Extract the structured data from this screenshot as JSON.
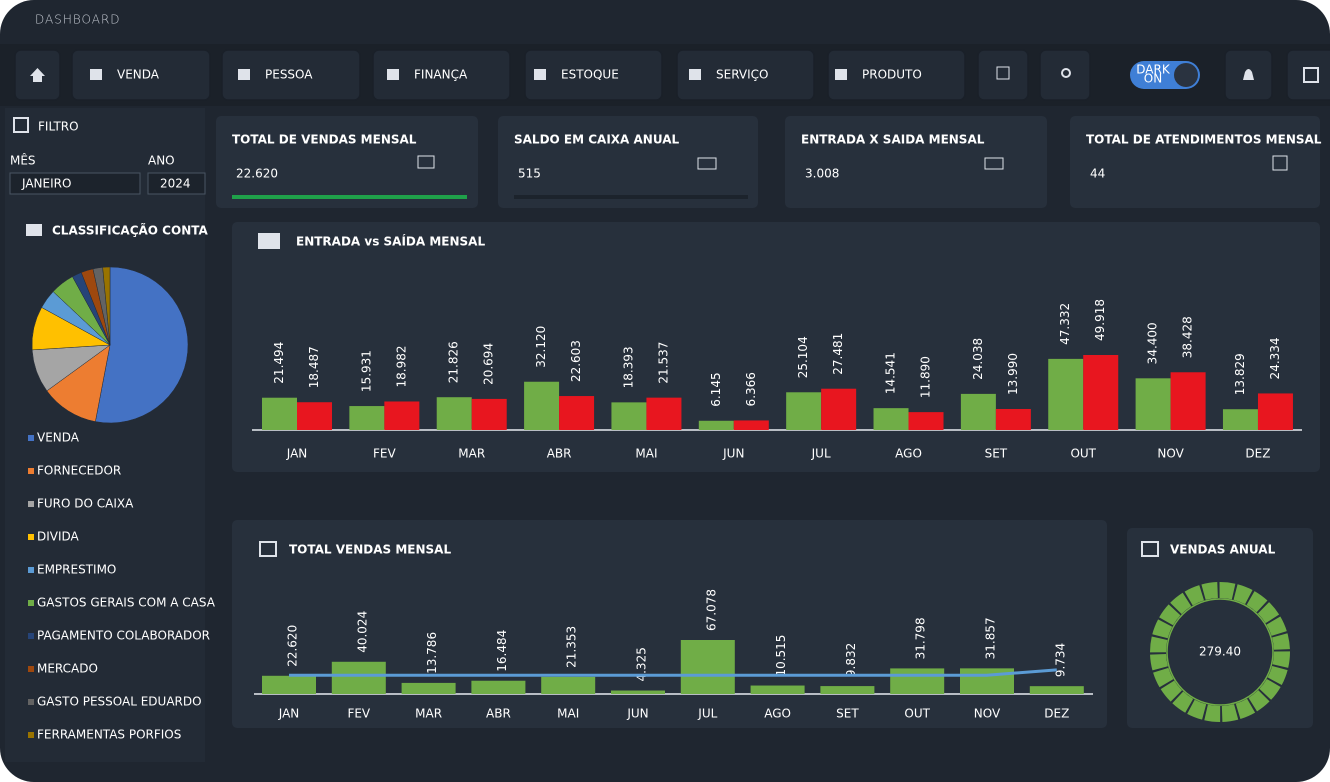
{
  "header": {
    "title": "DASHBOARD"
  },
  "nav": {
    "items": [
      "VENDA",
      "PESSOA",
      "FINANÇA",
      "ESTOQUE",
      "SERVIÇO",
      "PRODUTO"
    ],
    "toggle": [
      "DARK",
      "ON"
    ]
  },
  "filter": {
    "title": "FILTRO",
    "month_label": "MÊS",
    "year_label": "ANO",
    "month": "JANEIRO",
    "year": "2024"
  },
  "cards": [
    {
      "title": "TOTAL DE VENDAS MENSAL",
      "value": "22.620"
    },
    {
      "title": "SALDO EM CAIXA ANUAL",
      "value": "515"
    },
    {
      "title": "ENTRADA X SAIDA MENSAL",
      "value": "3.008"
    },
    {
      "title": "TOTAL DE ATENDIMENTOS MENSAL",
      "value": "44"
    }
  ],
  "classificacao": {
    "chart_data": {
      "type": "pie",
      "title": "CLASSIFICAÇÃO CONTA",
      "categories": [
        "VENDA",
        "FORNECEDOR",
        "FURO DO CAIXA",
        "DIVIDA",
        "EMPRESTIMO",
        "GASTOS GERAIS COM A CASA",
        "PAGAMENTO COLABORADOR",
        "MERCADO",
        "GASTO PESSOAL EDUARDO",
        "FERRAMENTAS PORFIOS"
      ],
      "values": [
        53,
        12,
        9,
        9,
        4,
        5,
        2,
        2.5,
        2,
        1.5
      ],
      "colors": [
        "#4472c4",
        "#ed7d31",
        "#a5a5a5",
        "#ffc000",
        "#5b9bd5",
        "#70ad47",
        "#264478",
        "#9e480e",
        "#636363",
        "#997300"
      ]
    }
  },
  "entrada_saida": {
    "chart_data": {
      "type": "bar",
      "title": "ENTRADA vs SAÍDA MENSAL",
      "categories": [
        "JAN",
        "FEV",
        "MAR",
        "ABR",
        "MAI",
        "JUN",
        "JUL",
        "AGO",
        "SET",
        "OUT",
        "NOV",
        "DEZ"
      ],
      "series": [
        {
          "color": "#70ad47",
          "values": [
            21494,
            15931,
            21826,
            32120,
            18393,
            6145,
            25104,
            14541,
            24038,
            47332,
            34400,
            13829
          ],
          "value_labels": [
            "21.494",
            "15.931",
            "21.826",
            "32.120",
            "18.393",
            "6.145",
            "25.104",
            "14.541",
            "24.038",
            "47.332",
            "34.400",
            "13.829"
          ]
        },
        {
          "color": "#e8161f",
          "values": [
            18487,
            18982,
            20694,
            22603,
            21537,
            6366,
            27481,
            11890,
            13990,
            49918,
            38428,
            24334
          ],
          "value_labels": [
            "18.487",
            "18.982",
            "20.694",
            "22.603",
            "21.537",
            "6.366",
            "27.481",
            "11.890",
            "13.990",
            "49.918",
            "38.428",
            "24.334"
          ]
        }
      ]
    }
  },
  "vendas_mensal": {
    "chart_data": {
      "type": "bar",
      "title": "TOTAL VENDAS MENSAL",
      "categories": [
        "JAN",
        "FEV",
        "MAR",
        "ABR",
        "MAI",
        "JUN",
        "JUL",
        "AGO",
        "SET",
        "OUT",
        "NOV",
        "DEZ"
      ],
      "series": [
        {
          "type": "bar",
          "color": "#70ad47",
          "values": [
            22620,
            40024,
            13786,
            16484,
            21353,
            4325,
            67078,
            10515,
            9832,
            31798,
            31857,
            9734
          ],
          "value_labels": [
            "22.620",
            "40.024",
            "13.786",
            "16.484",
            "21.353",
            "4.325",
            "67.078",
            "10.515",
            "9.832",
            "31.798",
            "31.857",
            "9.734"
          ]
        },
        {
          "type": "line",
          "color": "#5b9bd5",
          "values": [
            23300,
            23300,
            23300,
            23300,
            23300,
            23300,
            23300,
            23300,
            23300,
            23300,
            23300,
            30000
          ]
        }
      ]
    }
  },
  "vendas_anual": {
    "title": "VENDAS ANUAL",
    "value": "279.40"
  }
}
